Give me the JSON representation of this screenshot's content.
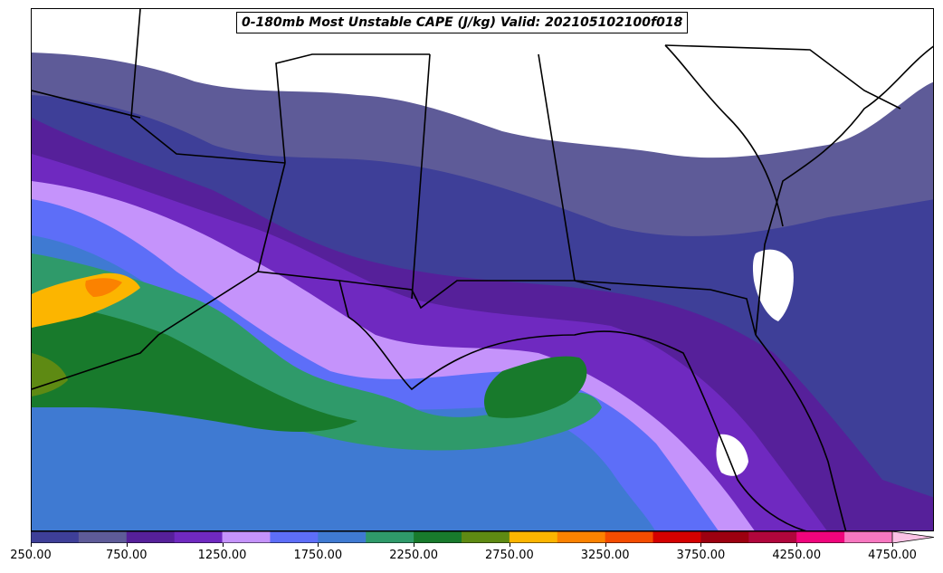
{
  "title": "0-180mb Most Unstable CAPE (J/kg) Valid: 202105102100f018",
  "colorbar": {
    "levels": [
      250,
      500,
      750,
      1000,
      1250,
      1500,
      1750,
      2000,
      2250,
      2500,
      2750,
      3000,
      3250,
      3500,
      3750,
      4000,
      4250,
      4500,
      4750,
      5000
    ],
    "colors": [
      "#3e3f98",
      "#5e5b98",
      "#56209a",
      "#6f29c0",
      "#c593fb",
      "#5d6ef8",
      "#3f7ad2",
      "#2f9a6a",
      "#187a2c",
      "#5e8a13",
      "#fcb500",
      "#fb8200",
      "#f44c00",
      "#d40000",
      "#9c0010",
      "#b0063c",
      "#f0047c",
      "#f777c0",
      "#fcc2e6"
    ],
    "extend": "max",
    "tick_labels": [
      "250.00",
      "750.00",
      "1250.00",
      "1750.00",
      "2250.00",
      "2750.00",
      "3250.00",
      "3750.00",
      "4250.00",
      "4750.00"
    ]
  },
  "map": {
    "land_color": "#ffffff",
    "border_color": "#000000"
  }
}
